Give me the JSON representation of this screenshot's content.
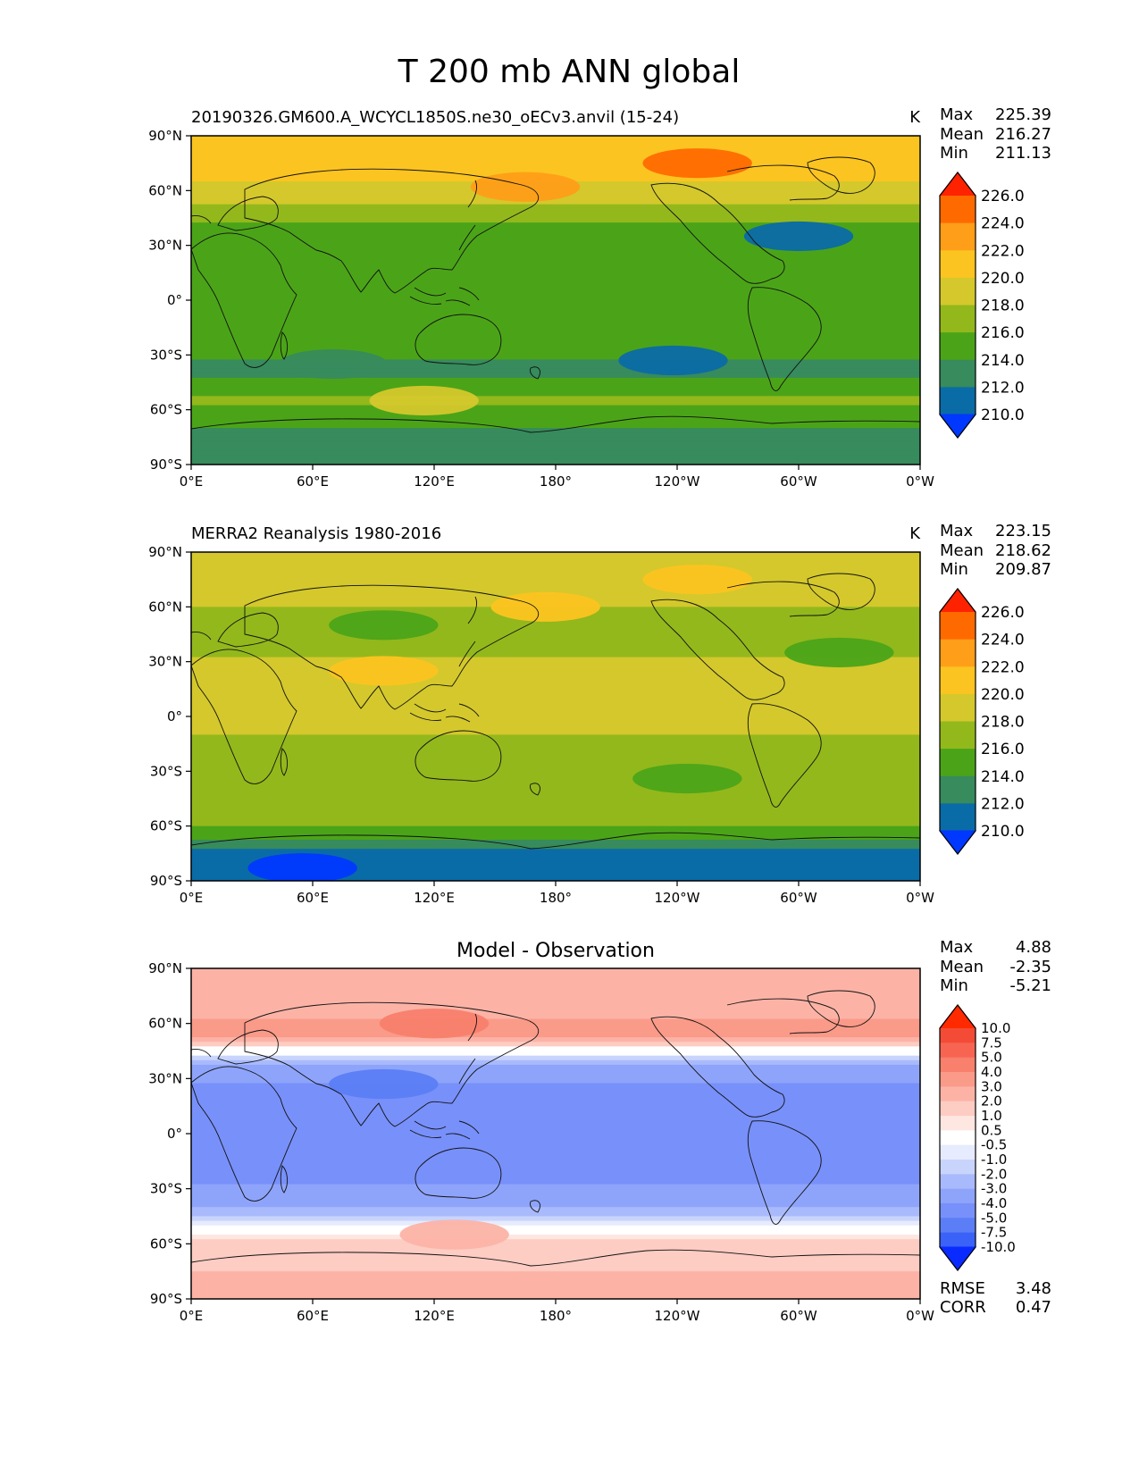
{
  "title": "T 200 mb ANN global",
  "chart_data": [
    {
      "type": "heatmap",
      "title": "20190326.GM600.A_WCYCL1850S.ne30_oECv3.anvil (15-24)",
      "units": "K",
      "stats": {
        "Max": "225.39",
        "Mean": "216.27",
        "Min": "211.13"
      },
      "xlim": [
        0,
        360
      ],
      "ylim": [
        -90,
        90
      ],
      "xticks": [
        "0°E",
        "60°E",
        "120°E",
        "180°",
        "120°W",
        "60°W",
        "0°W"
      ],
      "yticks": [
        "90°N",
        "60°N",
        "30°N",
        "0°",
        "30°S",
        "60°S",
        "90°S"
      ],
      "colorbar_levels": [
        "226.0",
        "224.0",
        "222.0",
        "220.0",
        "218.0",
        "216.0",
        "214.0",
        "212.0",
        "210.0"
      ],
      "colorbar_colors": [
        "#ff2200",
        "#ff6a00",
        "#ff9e18",
        "#fcc420",
        "#d4c82c",
        "#93b81c",
        "#4ba418",
        "#378b5c",
        "#0a6ca6",
        "#0038ff"
      ],
      "lat_profile": [
        {
          "lat": 90,
          "value": 222.5
        },
        {
          "lat": 70,
          "value": 222.0
        },
        {
          "lat": 55,
          "value": 219.5
        },
        {
          "lat": 40,
          "value": 216.5
        },
        {
          "lat": 20,
          "value": 215.2
        },
        {
          "lat": 0,
          "value": 215.0
        },
        {
          "lat": -25,
          "value": 215.5
        },
        {
          "lat": -40,
          "value": 214.5
        },
        {
          "lat": -55,
          "value": 217.5
        },
        {
          "lat": -65,
          "value": 216.0
        },
        {
          "lat": -75,
          "value": 213.8
        },
        {
          "lat": -90,
          "value": 213.5
        }
      ],
      "features": [
        {
          "name": "anom-arctic-canada",
          "lon": 250,
          "lat": 75,
          "value": 225.0
        },
        {
          "name": "anom-north-pacific",
          "lon": 165,
          "lat": 62,
          "value": 223.0
        },
        {
          "name": "anom-north-atlantic",
          "lon": 300,
          "lat": 35,
          "value": 212.5
        },
        {
          "name": "anom-south-pacific",
          "lon": 238,
          "lat": -33,
          "value": 212.5
        },
        {
          "name": "anom-indian-ocean",
          "lon": 70,
          "lat": -35,
          "value": 214.0
        },
        {
          "name": "anom-south-indian",
          "lon": 115,
          "lat": -55,
          "value": 219.5
        }
      ]
    },
    {
      "type": "heatmap",
      "title": "MERRA2 Reanalysis 1980-2016",
      "units": "K",
      "stats": {
        "Max": "223.15",
        "Mean": "218.62",
        "Min": "209.87"
      },
      "xlim": [
        0,
        360
      ],
      "ylim": [
        -90,
        90
      ],
      "xticks": [
        "0°E",
        "60°E",
        "120°E",
        "180°",
        "120°W",
        "60°W",
        "0°W"
      ],
      "yticks": [
        "90°N",
        "60°N",
        "30°N",
        "0°",
        "30°S",
        "60°S",
        "90°S"
      ],
      "colorbar_levels": [
        "226.0",
        "224.0",
        "222.0",
        "220.0",
        "218.0",
        "216.0",
        "214.0",
        "212.0",
        "210.0"
      ],
      "colorbar_colors": [
        "#ff2200",
        "#ff6a00",
        "#ff9e18",
        "#fcc420",
        "#d4c82c",
        "#93b81c",
        "#4ba418",
        "#378b5c",
        "#0a6ca6",
        "#0038ff"
      ],
      "lat_profile": [
        {
          "lat": 90,
          "value": 220.5
        },
        {
          "lat": 65,
          "value": 219.8
        },
        {
          "lat": 50,
          "value": 217.0
        },
        {
          "lat": 30,
          "value": 219.2
        },
        {
          "lat": 10,
          "value": 219.0
        },
        {
          "lat": -10,
          "value": 219.0
        },
        {
          "lat": -30,
          "value": 218.0
        },
        {
          "lat": -45,
          "value": 217.0
        },
        {
          "lat": -55,
          "value": 218.5
        },
        {
          "lat": -65,
          "value": 215.5
        },
        {
          "lat": -72,
          "value": 213.0
        },
        {
          "lat": -90,
          "value": 211.5
        }
      ],
      "features": [
        {
          "name": "anom-arctic-canada",
          "lon": 250,
          "lat": 75,
          "value": 222.8
        },
        {
          "name": "anom-north-pacific",
          "lon": 175,
          "lat": 60,
          "value": 222.5
        },
        {
          "name": "anom-south-asia",
          "lon": 95,
          "lat": 25,
          "value": 222.5
        },
        {
          "name": "anom-north-atlantic",
          "lon": 320,
          "lat": 35,
          "value": 215.0
        },
        {
          "name": "anom-siberia",
          "lon": 95,
          "lat": 50,
          "value": 215.5
        },
        {
          "name": "anom-south-pacific",
          "lon": 245,
          "lat": -34,
          "value": 215.0
        },
        {
          "name": "anom-antarctic",
          "lon": 55,
          "lat": -83,
          "value": 209.5
        }
      ]
    },
    {
      "type": "heatmap",
      "title": "Model - Observation",
      "units": "",
      "stats": {
        "Max": "4.88",
        "Mean": "-2.35",
        "Min": "-5.21"
      },
      "metrics": {
        "RMSE": "3.48",
        "CORR": "0.47"
      },
      "xlim": [
        0,
        360
      ],
      "ylim": [
        -90,
        90
      ],
      "xticks": [
        "0°E",
        "60°E",
        "120°E",
        "180°",
        "120°W",
        "60°W",
        "0°W"
      ],
      "yticks": [
        "90°N",
        "60°N",
        "30°N",
        "0°",
        "30°S",
        "60°S",
        "90°S"
      ],
      "colorbar_levels": [
        "10.0",
        "7.5",
        "5.0",
        "4.0",
        "3.0",
        "2.0",
        "1.0",
        "0.5",
        "-0.5",
        "-1.0",
        "-2.0",
        "-3.0",
        "-4.0",
        "-5.0",
        "-7.5",
        "-10.0"
      ],
      "colorbar_colors": [
        "#ff2a00",
        "#f44b36",
        "#f76552",
        "#f8806c",
        "#fa9a88",
        "#fcb3a6",
        "#fdccc3",
        "#fee6e1",
        "#ffffff",
        "#e6ebfe",
        "#c9d4fd",
        "#a9bafc",
        "#8ea4fb",
        "#7890fa",
        "#5b7ef6",
        "#3a62f8",
        "#0a2bff"
      ],
      "lat_profile": [
        {
          "lat": 90,
          "value": 2.0
        },
        {
          "lat": 70,
          "value": 2.5
        },
        {
          "lat": 55,
          "value": 3.5
        },
        {
          "lat": 45,
          "value": 0.0
        },
        {
          "lat": 35,
          "value": -3.5
        },
        {
          "lat": 20,
          "value": -4.5
        },
        {
          "lat": 0,
          "value": -4.5
        },
        {
          "lat": -25,
          "value": -4.3
        },
        {
          "lat": -40,
          "value": -3.0
        },
        {
          "lat": -52,
          "value": 0.0
        },
        {
          "lat": -60,
          "value": 1.2
        },
        {
          "lat": -75,
          "value": 2.0
        },
        {
          "lat": -90,
          "value": 2.7
        }
      ],
      "features": [
        {
          "name": "anom-east-asia-warm",
          "lon": 120,
          "lat": 60,
          "value": 4.8
        },
        {
          "name": "anom-tibet-cold",
          "lon": 95,
          "lat": 27,
          "value": -5.2
        },
        {
          "name": "anom-south-indian",
          "lon": 130,
          "lat": -55,
          "value": 2.2
        }
      ]
    }
  ]
}
